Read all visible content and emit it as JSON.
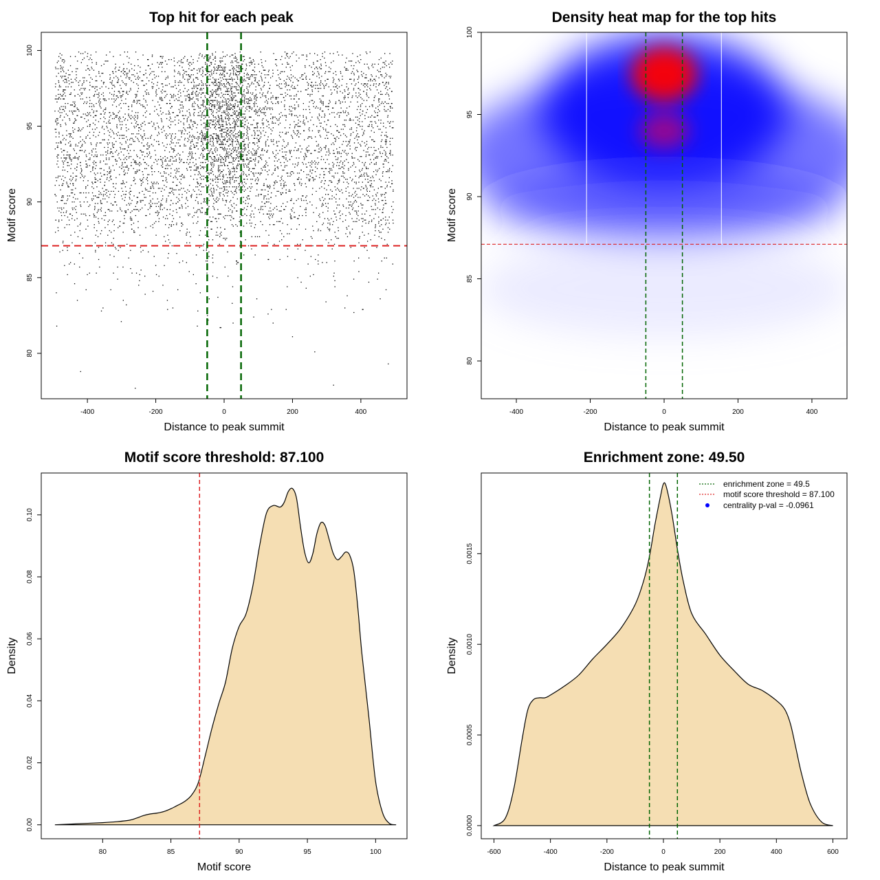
{
  "chart_data": [
    {
      "id": "scatter",
      "type": "scatter",
      "title": "Top hit for each peak",
      "xlabel": "Distance to peak summit",
      "ylabel": "Motif score",
      "xlim": [
        -535,
        535
      ],
      "ylim": [
        77,
        101.2
      ],
      "xticks": [
        -400,
        -200,
        0,
        200,
        400
      ],
      "yticks": [
        80,
        85,
        90,
        95,
        100
      ],
      "threshold_y": 87.1,
      "enrichment_x": [
        -49.5,
        49.5
      ],
      "threshold_color": "#dd2222",
      "zone_color": "#006400",
      "point_color": "#000000",
      "point_summary": "approx. 6000 top-hit points spread over x in [-495, 495], mostly scores 88-100, denser near x = 0",
      "points_sample": [
        [
          -480,
          99.8
        ],
        [
          -120,
          98.3
        ],
        [
          0,
          98.9
        ],
        [
          30,
          97.6
        ],
        [
          250,
          96.1
        ],
        [
          -300,
          94.4
        ],
        [
          10,
          94.0
        ],
        [
          410,
          92.5
        ],
        [
          -450,
          91.2
        ],
        [
          120,
          89.7
        ],
        [
          -380,
          88.3
        ],
        [
          300,
          86.0
        ],
        [
          -250,
          84.5
        ],
        [
          -150,
          83.0
        ],
        [
          200,
          81.1
        ],
        [
          -420,
          78.8
        ],
        [
          -260,
          77.7
        ],
        [
          320,
          77.9
        ],
        [
          480,
          79.3
        ]
      ]
    },
    {
      "id": "heatmap",
      "type": "heatmap",
      "title": "Density heat map for the top hits",
      "xlabel": "Distance to peak summit",
      "ylabel": "Motif score",
      "xlim": [
        -495,
        495
      ],
      "ylim": [
        77.7,
        100
      ],
      "xticks": [
        -400,
        -200,
        0,
        200,
        400
      ],
      "yticks": [
        80,
        85,
        90,
        95,
        100
      ],
      "threshold_y": 87.1,
      "enrichment_x": [
        -49.5,
        49.5
      ],
      "white_gridlines_x": [
        -210,
        155
      ],
      "colors": [
        "#ffffff",
        "#0000ff",
        "#ff0000"
      ],
      "hotspots": [
        {
          "x": 5,
          "y": 97.8,
          "level": "max"
        },
        {
          "x": 5,
          "y": 94.0,
          "level": "high"
        }
      ]
    },
    {
      "id": "score-density",
      "type": "area",
      "title": "Motif score threshold: 87.100",
      "xlabel": "Motif score",
      "ylabel": "Density",
      "xlim": [
        75.5,
        102.3
      ],
      "ylim": [
        -0.0045,
        0.1135
      ],
      "xticks": [
        80,
        85,
        90,
        95,
        100
      ],
      "yticks": [
        0.0,
        0.02,
        0.04,
        0.06,
        0.08,
        0.1
      ],
      "ytick_labels": [
        "0.00",
        "0.02",
        "0.04",
        "0.06",
        "0.08",
        "0.10"
      ],
      "threshold_x": 87.1,
      "fill_color": "#f5deb3",
      "x": [
        76.5,
        78,
        80,
        81,
        82,
        82.5,
        83,
        83.5,
        84,
        84.5,
        85,
        85.5,
        86,
        86.5,
        87,
        87.5,
        88,
        88.5,
        89,
        89.5,
        90,
        90.5,
        91,
        91.5,
        92,
        92.5,
        93,
        93.3,
        93.6,
        93.9,
        94.2,
        94.5,
        94.8,
        95.1,
        95.4,
        95.7,
        96,
        96.3,
        96.6,
        96.9,
        97.2,
        97.5,
        97.8,
        98.1,
        98.4,
        98.7,
        99,
        99.5,
        100,
        100.5,
        101,
        101.5
      ],
      "y": [
        0.0,
        0.0003,
        0.0007,
        0.001,
        0.0015,
        0.0022,
        0.003,
        0.0035,
        0.0038,
        0.0043,
        0.0052,
        0.0063,
        0.0075,
        0.0095,
        0.0135,
        0.022,
        0.031,
        0.039,
        0.046,
        0.057,
        0.064,
        0.068,
        0.077,
        0.09,
        0.1005,
        0.103,
        0.1025,
        0.104,
        0.1075,
        0.1085,
        0.1055,
        0.096,
        0.088,
        0.0845,
        0.0875,
        0.094,
        0.0975,
        0.0965,
        0.092,
        0.0875,
        0.0855,
        0.0865,
        0.088,
        0.087,
        0.082,
        0.07,
        0.055,
        0.035,
        0.014,
        0.004,
        0.0005,
        0.0
      ]
    },
    {
      "id": "distance-density",
      "type": "area",
      "title": "Enrichment zone: 49.50",
      "xlabel": "Distance to peak summit",
      "ylabel": "Density",
      "xlim": [
        -645,
        650
      ],
      "ylim": [
        -7.25e-05,
        0.001945
      ],
      "xticks": [
        -600,
        -400,
        -200,
        0,
        200,
        400,
        600
      ],
      "yticks": [
        0.0,
        0.0005,
        0.001,
        0.0015
      ],
      "ytick_labels": [
        "0.0000",
        "0.0005",
        "0.0010",
        "0.0015"
      ],
      "enrichment_x": [
        -49.5,
        49.5
      ],
      "fill_color": "#f5deb3",
      "x": [
        -600,
        -560,
        -530,
        -500,
        -480,
        -460,
        -440,
        -420,
        -400,
        -350,
        -300,
        -250,
        -200,
        -150,
        -100,
        -70,
        -50,
        -30,
        -10,
        0,
        10,
        30,
        50,
        70,
        100,
        150,
        200,
        250,
        300,
        350,
        400,
        430,
        450,
        470,
        490,
        520,
        560,
        600
      ],
      "y": [
        0.0,
        4e-05,
        0.0002,
        0.00048,
        0.00064,
        0.000695,
        0.000705,
        0.000705,
        0.00072,
        0.00077,
        0.00083,
        0.00092,
        0.001,
        0.00109,
        0.00122,
        0.00135,
        0.00148,
        0.00166,
        0.00182,
        0.001885,
        0.00187,
        0.00172,
        0.00152,
        0.00135,
        0.00117,
        0.001055,
        0.00094,
        0.000855,
        0.00078,
        0.000745,
        0.00069,
        0.00064,
        0.00056,
        0.00042,
        0.00028,
        0.00012,
        2e-05,
        0.0
      ],
      "legend": [
        {
          "label": "enrichment zone = 49.5",
          "color": "#006400",
          "kind": "dotted-line"
        },
        {
          "label": "motif score threshold = 87.100",
          "color": "#dd2222",
          "kind": "dotted-line"
        },
        {
          "label": "centrality p-val = -0.0961",
          "color": "#0000ff",
          "kind": "dot"
        }
      ],
      "legend_position": "top-right"
    }
  ]
}
